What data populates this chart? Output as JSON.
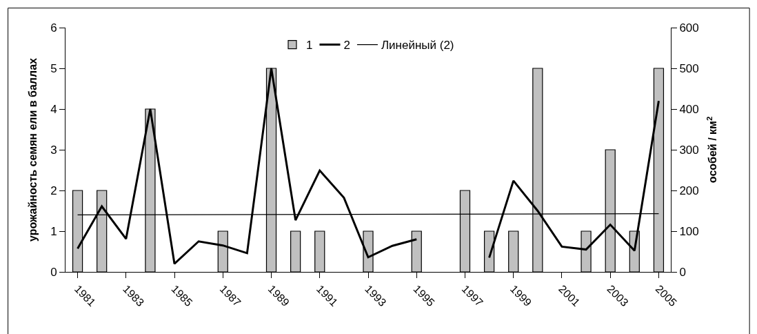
{
  "chart_data": {
    "type": "bar",
    "categories": [
      "1981",
      null,
      "1983",
      null,
      "1985",
      null,
      "1987",
      null,
      "1989",
      null,
      "1991",
      null,
      "1993",
      null,
      "1995",
      null,
      "1997",
      null,
      "1999",
      null,
      "2001",
      null,
      "2003",
      null,
      "2005"
    ],
    "series": [
      {
        "name": "1",
        "color": "#c0c0c0",
        "values": [
          2,
          2,
          null,
          4,
          null,
          null,
          1,
          null,
          5,
          1,
          1,
          null,
          1,
          null,
          1,
          null,
          2,
          1,
          1,
          5,
          null,
          1,
          3,
          1,
          5
        ]
      },
      {
        "name": "2",
        "type": "line",
        "axis": "y2",
        "color": "#000000",
        "values": [
          57,
          161,
          81,
          400,
          20,
          75,
          65,
          46,
          500,
          127,
          249,
          182,
          36,
          64,
          80,
          null,
          null,
          35,
          224,
          150,
          62,
          55,
          116,
          52,
          420
        ]
      },
      {
        "name": "Линейный (2)",
        "type": "line",
        "axis": "y2",
        "color": "#000000",
        "values": [
          140,
          null,
          null,
          null,
          null,
          null,
          null,
          null,
          null,
          null,
          null,
          null,
          null,
          null,
          null,
          null,
          null,
          null,
          null,
          null,
          null,
          null,
          null,
          null,
          143
        ]
      }
    ],
    "ylabel": "урожайность семян ели в баллах",
    "y2label": "особей / км$^{2}$",
    "ylim": [
      0,
      6
    ],
    "yticks": [
      0,
      1,
      2,
      3,
      4,
      5,
      6
    ],
    "y2lim": [
      0,
      600
    ],
    "y2ticks": [
      0,
      100,
      200,
      300,
      400,
      500,
      600
    ],
    "legend": "top"
  }
}
